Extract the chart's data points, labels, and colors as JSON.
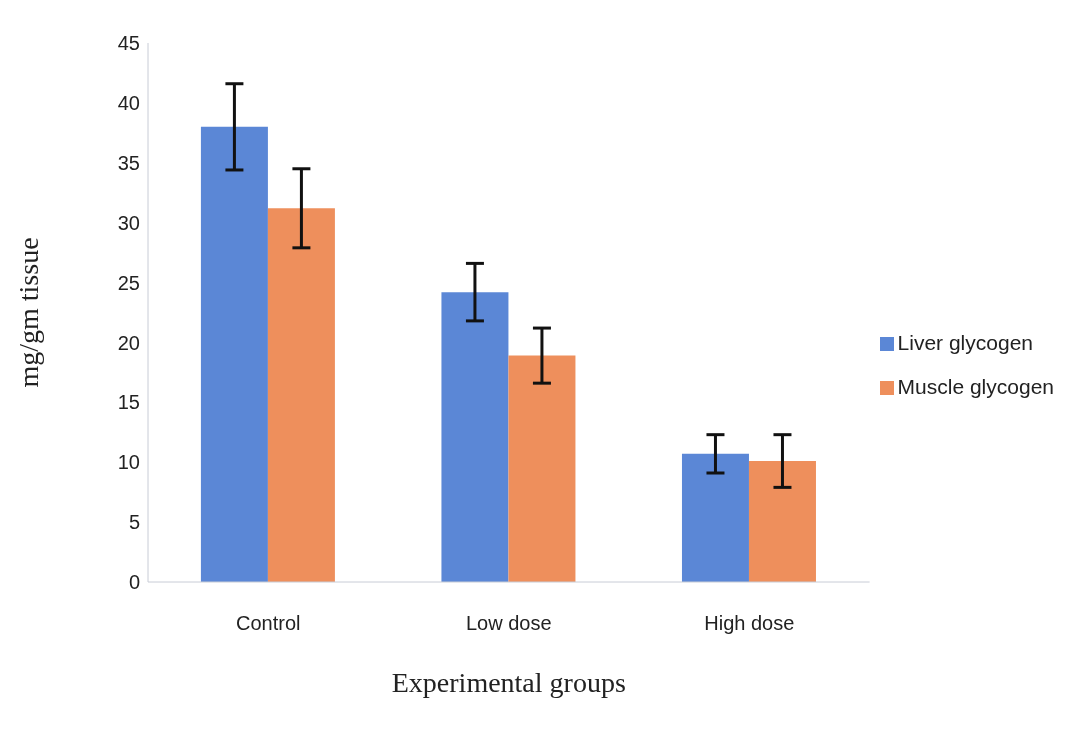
{
  "chart_data": {
    "type": "bar",
    "xlabel": "Experimental groups",
    "ylabel": "mg/gm tissue",
    "categories": [
      "Control",
      "Low dose",
      "High dose"
    ],
    "series": [
      {
        "name": "Liver glycogen",
        "color": "#5b87d6",
        "values": [
          38,
          24.2,
          10.7
        ],
        "errors": [
          3.6,
          2.4,
          1.6
        ]
      },
      {
        "name": "Muscle glycogen",
        "color": "#ee8f5c",
        "values": [
          31.2,
          18.9,
          10.1
        ],
        "errors": [
          3.3,
          2.3,
          2.2
        ]
      }
    ],
    "ylim": [
      0,
      45
    ],
    "yticks": [
      0,
      5,
      10,
      15,
      20,
      25,
      30,
      35,
      40,
      45
    ],
    "grid": false,
    "legend": "right"
  }
}
